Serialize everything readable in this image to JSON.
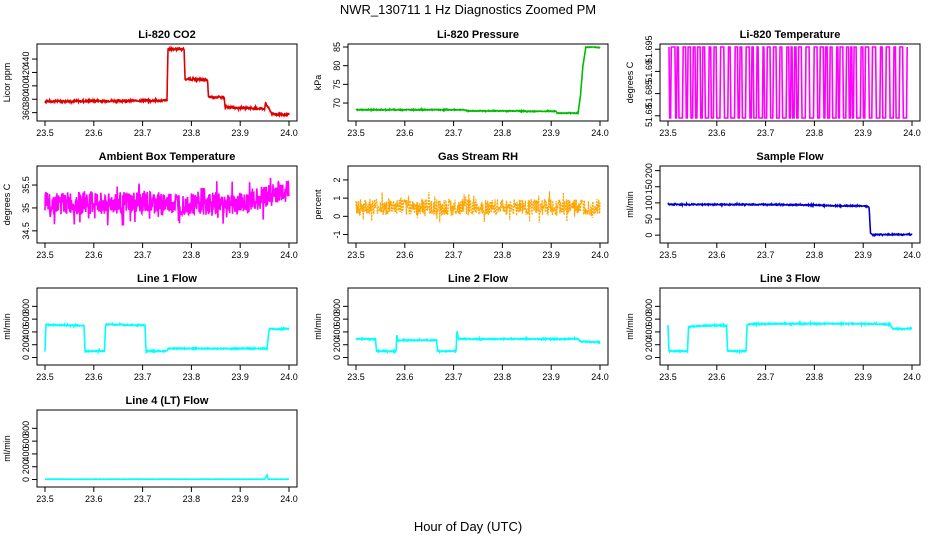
{
  "figure": {
    "title": "NWR_130711  1 Hz Diagnostics Zoomed PM",
    "xlabel": "Hour of Day (UTC)"
  },
  "chart_data": [
    {
      "type": "line",
      "title": "Li-820 CO2",
      "ylabel": "Licor ppm",
      "color": "#dd0000",
      "xlim": [
        23.5,
        24.0
      ],
      "xticks": [
        23.5,
        23.6,
        23.7,
        23.8,
        23.9,
        24.0
      ],
      "ylim": [
        352,
        458
      ],
      "yticks": [
        360,
        380,
        400,
        420,
        440
      ],
      "series": [
        {
          "x": [
            23.5,
            23.75,
            23.752,
            23.785,
            23.787,
            23.833,
            23.835,
            23.867,
            23.869,
            23.95,
            23.952,
            23.963,
            23.965,
            23.99,
            24.0
          ],
          "y": [
            377,
            378,
            455,
            455,
            410,
            409,
            383,
            383,
            368,
            366,
            374,
            361,
            358,
            357,
            357
          ]
        }
      ]
    },
    {
      "type": "line",
      "title": "Li-820 Pressure",
      "ylabel": "kPa",
      "color": "#00bb00",
      "xlim": [
        23.5,
        24.0
      ],
      "xticks": [
        23.5,
        23.6,
        23.7,
        23.8,
        23.9,
        24.0
      ],
      "ylim": [
        66,
        85
      ],
      "yticks": [
        70,
        75,
        80,
        85
      ],
      "series": [
        {
          "x": [
            23.5,
            23.72,
            23.73,
            23.84,
            23.85,
            23.91,
            23.912,
            23.955,
            23.96,
            23.965,
            23.97,
            23.97,
            23.99,
            24.0
          ],
          "y": [
            68.2,
            68.2,
            67.9,
            67.9,
            67.8,
            67.8,
            67.3,
            67.3,
            72,
            80,
            84.2,
            85,
            85,
            84.8
          ]
        }
      ]
    },
    {
      "type": "line",
      "title": "Li-820 Temperature",
      "ylabel": "degrees C",
      "color": "#ff00ff",
      "xlim": [
        23.5,
        24.0
      ],
      "xticks": [
        23.5,
        23.6,
        23.7,
        23.8,
        23.9,
        24.0
      ],
      "ylim": [
        51.6795,
        51.6955
      ],
      "yticks": [
        51.68,
        51.685,
        51.69,
        51.695
      ],
      "series": [
        {
          "x": [
            23.5,
            23.99
          ],
          "y": [
            51.6955,
            51.6795
          ]
        }
      ]
    },
    {
      "type": "line",
      "title": "Ambient Box Temperature",
      "ylabel": "degrees C",
      "color": "#ff00ff",
      "xlim": [
        23.5,
        24.0
      ],
      "xticks": [
        23.5,
        23.6,
        23.7,
        23.8,
        23.9,
        24.0
      ],
      "ylim": [
        34.3,
        35.85
      ],
      "yticks": [
        34.5,
        35.0,
        35.5
      ],
      "series": [
        {
          "x": [
            23.5,
            23.9,
            24.0
          ],
          "y": [
            35.1,
            35.1,
            35.4
          ]
        }
      ]
    },
    {
      "type": "line",
      "title": "Gas Stream RH",
      "ylabel": "percent",
      "color": "#ffa500",
      "xlim": [
        23.5,
        24.0
      ],
      "xticks": [
        23.5,
        23.6,
        23.7,
        23.8,
        23.9,
        24.0
      ],
      "ylim": [
        -1.3,
        2.6
      ],
      "yticks": [
        -1,
        0,
        1,
        2
      ],
      "series": [
        {
          "x": [
            23.5,
            24.0
          ],
          "y": [
            0.5,
            0.5
          ]
        }
      ]
    },
    {
      "type": "line",
      "title": "Sample Flow",
      "ylabel": "ml/min",
      "color": "#0000cc",
      "xlim": [
        23.5,
        24.0
      ],
      "xticks": [
        23.5,
        23.6,
        23.7,
        23.8,
        23.9,
        24.0
      ],
      "ylim": [
        -15,
        205
      ],
      "yticks": [
        0,
        50,
        100,
        150,
        200
      ],
      "series": [
        {
          "x": [
            23.5,
            23.7,
            23.75,
            23.8,
            23.85,
            23.9,
            23.912,
            23.915,
            23.92,
            23.93,
            23.99,
            24.0
          ],
          "y": [
            95,
            95,
            94,
            93,
            91,
            91,
            88,
            5,
            0,
            2,
            2,
            2
          ]
        }
      ]
    },
    {
      "type": "line",
      "title": "Line 1 Flow",
      "ylabel": "ml/min",
      "color": "#00ffff",
      "xlim": [
        23.5,
        24.0
      ],
      "xticks": [
        23.5,
        23.6,
        23.7,
        23.8,
        23.9,
        24.0
      ],
      "ylim": [
        -70,
        1040
      ],
      "yticks": [
        0,
        200,
        400,
        600,
        800
      ],
      "series": [
        {
          "x": [
            23.5,
            23.502,
            23.505,
            23.58,
            23.582,
            23.622,
            23.624,
            23.705,
            23.707,
            23.75,
            23.752,
            23.955,
            23.957,
            23.96,
            23.975,
            23.99,
            24.0
          ],
          "y": [
            100,
            520,
            510,
            500,
            100,
            100,
            520,
            500,
            100,
            100,
            140,
            140,
            300,
            450,
            440,
            450,
            450
          ]
        }
      ]
    },
    {
      "type": "line",
      "title": "Line 2 Flow",
      "ylabel": "ml/min",
      "color": "#00ffff",
      "xlim": [
        23.5,
        24.0
      ],
      "xticks": [
        23.5,
        23.6,
        23.7,
        23.8,
        23.9,
        24.0
      ],
      "ylim": [
        -70,
        1040
      ],
      "yticks": [
        0,
        200,
        400,
        600,
        800
      ],
      "series": [
        {
          "x": [
            23.5,
            23.505,
            23.54,
            23.542,
            23.582,
            23.584,
            23.585,
            23.665,
            23.667,
            23.705,
            23.707,
            23.71,
            23.955,
            23.96,
            24.0
          ],
          "y": [
            290,
            290,
            290,
            100,
            100,
            380,
            270,
            270,
            100,
            100,
            420,
            290,
            290,
            250,
            240
          ]
        }
      ]
    },
    {
      "type": "line",
      "title": "Line 3 Flow",
      "ylabel": "ml/min",
      "color": "#00ffff",
      "xlim": [
        23.5,
        24.0
      ],
      "xticks": [
        23.5,
        23.6,
        23.7,
        23.8,
        23.9,
        24.0
      ],
      "ylim": [
        -70,
        1040
      ],
      "yticks": [
        0,
        200,
        400,
        600,
        800
      ],
      "series": [
        {
          "x": [
            23.5,
            23.502,
            23.54,
            23.542,
            23.58,
            23.62,
            23.622,
            23.66,
            23.662,
            23.665,
            23.75,
            23.85,
            23.955,
            23.96,
            24.0
          ],
          "y": [
            500,
            100,
            100,
            480,
            500,
            500,
            100,
            100,
            500,
            520,
            530,
            530,
            520,
            450,
            450
          ]
        }
      ]
    },
    {
      "type": "line",
      "title": "Line 4 (LT) Flow",
      "ylabel": "ml/min",
      "color": "#00ffff",
      "xlim": [
        23.5,
        24.0
      ],
      "xticks": [
        23.5,
        23.6,
        23.7,
        23.8,
        23.9,
        24.0
      ],
      "ylim": [
        -70,
        1040
      ],
      "yticks": [
        0,
        200,
        400,
        600,
        800
      ],
      "series": [
        {
          "x": [
            23.5,
            23.95,
            23.955,
            23.957,
            23.96,
            24.0
          ],
          "y": [
            5,
            5,
            70,
            5,
            5,
            5
          ]
        }
      ]
    }
  ]
}
